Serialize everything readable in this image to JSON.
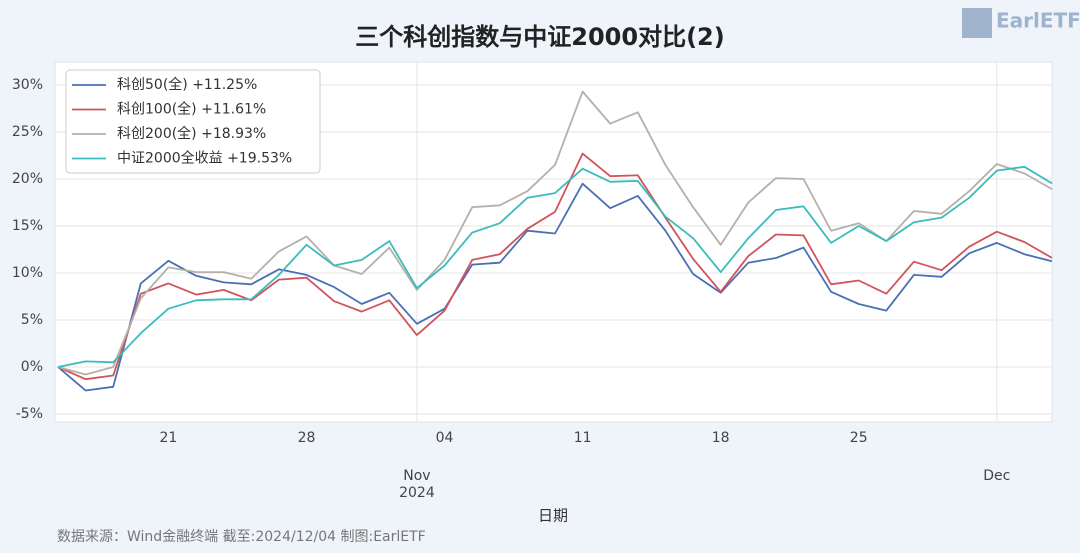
{
  "chart_data": {
    "type": "line",
    "title": "三个科创指数与中证2000对比(2)",
    "x_label": "日期",
    "source": "数据来源：Wind金融终端 截至:2024/12/04 制图:EarlETF",
    "logo": "EarlETF",
    "categories": [
      null,
      null,
      null,
      null,
      "21",
      null,
      null,
      null,
      null,
      "28",
      null,
      null,
      null,
      null,
      "04",
      null,
      null,
      null,
      null,
      "11",
      null,
      null,
      null,
      null,
      "18",
      null,
      null,
      null,
      null,
      "25",
      null,
      null,
      null,
      null,
      null,
      null,
      null
    ],
    "month_labels": [
      {
        "index": 13,
        "label": "Nov",
        "year": "2024"
      },
      {
        "index": 34,
        "label": "Dec"
      }
    ],
    "ylim": [
      -5.85,
      32.45
    ],
    "yticks": [
      {
        "value": -5,
        "label": "-5%"
      },
      {
        "value": 0,
        "label": "0%"
      },
      {
        "value": 5,
        "label": "5%"
      },
      {
        "value": 10,
        "label": "10%"
      },
      {
        "value": 15,
        "label": "15%"
      },
      {
        "value": 20,
        "label": "20%"
      },
      {
        "value": 25,
        "label": "25%"
      },
      {
        "value": 30,
        "label": "30%"
      }
    ],
    "grid": true,
    "legend": "upper left",
    "series": [
      {
        "name": "科创50(全)  +11.25%",
        "color": "#4a6fb5",
        "values": [
          0,
          -2.5,
          -2.1,
          8.9,
          11.3,
          9.7,
          9.0,
          8.8,
          10.4,
          9.8,
          8.5,
          6.7,
          7.9,
          4.6,
          6.2,
          10.9,
          11.1,
          14.5,
          14.2,
          19.5,
          16.9,
          18.2,
          14.5,
          9.9,
          7.9,
          11.1,
          11.6,
          12.7,
          8.0,
          6.7,
          6.0,
          9.8,
          9.6,
          12.1,
          13.2,
          12.0,
          11.25
        ]
      },
      {
        "name": "科创100(全)  +11.61%",
        "color": "#d0545a",
        "values": [
          0,
          -1.3,
          -0.9,
          7.8,
          8.9,
          7.7,
          8.2,
          7.1,
          9.3,
          9.5,
          7.0,
          5.9,
          7.1,
          3.4,
          6.0,
          11.4,
          12.0,
          14.7,
          16.5,
          22.7,
          20.3,
          20.4,
          15.9,
          11.5,
          8.0,
          11.8,
          14.1,
          14.0,
          8.8,
          9.2,
          7.8,
          11.2,
          10.3,
          12.8,
          14.4,
          13.3,
          11.61
        ]
      },
      {
        "name": "科创200(全)  +18.93%",
        "color": "#b5b0a8",
        "values": [
          0,
          -0.8,
          0,
          7.3,
          10.6,
          10.1,
          10.1,
          9.4,
          12.3,
          13.9,
          10.8,
          9.9,
          12.7,
          8.2,
          11.4,
          17.0,
          17.2,
          18.7,
          21.5,
          29.3,
          25.9,
          27.1,
          21.5,
          17.0,
          13.0,
          17.5,
          20.1,
          20.0,
          14.5,
          15.3,
          13.4,
          16.6,
          16.3,
          18.7,
          21.6,
          20.6,
          18.93
        ]
      },
      {
        "name": "中证2000全收益  +19.53%",
        "color": "#3bbcbc",
        "values": [
          0,
          0.6,
          0.5,
          3.6,
          6.2,
          7.1,
          7.2,
          7.2,
          9.8,
          13.0,
          10.8,
          11.4,
          13.4,
          8.4,
          10.8,
          14.3,
          15.3,
          18.0,
          18.5,
          21.1,
          19.7,
          19.8,
          16.0,
          13.7,
          10.1,
          13.7,
          16.7,
          17.1,
          13.2,
          15.0,
          13.4,
          15.4,
          15.9,
          18.0,
          20.9,
          21.3,
          19.53
        ]
      }
    ]
  }
}
